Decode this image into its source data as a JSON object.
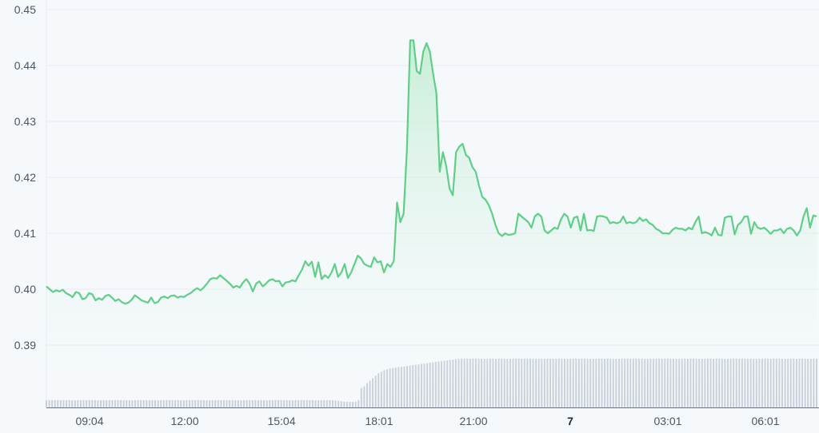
{
  "chart_data": {
    "type": "area",
    "title": "",
    "xlabel": "",
    "ylabel": "",
    "ylim": [
      0.38,
      0.45
    ],
    "grid": true,
    "legend": "none",
    "y_ticks": [
      "0.45",
      "0.44",
      "0.43",
      "0.42",
      "0.41",
      "0.40",
      "0.39"
    ],
    "x_ticks": [
      {
        "label": "09:04",
        "bold": false
      },
      {
        "label": "12:00",
        "bold": false
      },
      {
        "label": "15:04",
        "bold": false
      },
      {
        "label": "18:01",
        "bold": false
      },
      {
        "label": "21:00",
        "bold": false
      },
      {
        "label": "7",
        "bold": true
      },
      {
        "label": "03:01",
        "bold": false
      },
      {
        "label": "06:01",
        "bold": false
      }
    ],
    "colors": {
      "line": "#5fcf88",
      "area_top": "#bfeccf",
      "grid": "#e6ebf0",
      "volume": "#c9cfd8",
      "volume_axis": "#6b7280"
    },
    "series": [
      {
        "values": [
          0.4005,
          0.4,
          0.3995,
          0.3998,
          0.3996,
          0.3999,
          0.3993,
          0.399,
          0.3986,
          0.3995,
          0.3993,
          0.3982,
          0.3984,
          0.3993,
          0.3991,
          0.398,
          0.3984,
          0.3981,
          0.3988,
          0.399,
          0.3985,
          0.3979,
          0.3982,
          0.3977,
          0.3974,
          0.3976,
          0.3981,
          0.3989,
          0.3985,
          0.398,
          0.3978,
          0.3976,
          0.3985,
          0.3975,
          0.3977,
          0.3985,
          0.3987,
          0.3984,
          0.3988,
          0.3989,
          0.3985,
          0.3987,
          0.3986,
          0.399,
          0.3993,
          0.3998,
          0.4002,
          0.3998,
          0.4003,
          0.401,
          0.4018,
          0.402,
          0.4019,
          0.4025,
          0.402,
          0.4015,
          0.401,
          0.4003,
          0.4006,
          0.4003,
          0.4012,
          0.4018,
          0.401,
          0.3996,
          0.401,
          0.4014,
          0.4005,
          0.401,
          0.4016,
          0.4018,
          0.4014,
          0.4015,
          0.4005,
          0.4012,
          0.4013,
          0.4016,
          0.4014,
          0.4025,
          0.4035,
          0.405,
          0.4042,
          0.4049,
          0.4022,
          0.4048,
          0.4018,
          0.4025,
          0.402,
          0.403,
          0.4045,
          0.4022,
          0.403,
          0.4045,
          0.402,
          0.403,
          0.4045,
          0.406,
          0.4055,
          0.4045,
          0.4042,
          0.404,
          0.4057,
          0.4048,
          0.405,
          0.403,
          0.4045,
          0.404,
          0.405,
          0.4155,
          0.412,
          0.4135,
          0.425,
          0.4445,
          0.4445,
          0.439,
          0.4385,
          0.4425,
          0.444,
          0.4425,
          0.4385,
          0.435,
          0.421,
          0.4245,
          0.422,
          0.418,
          0.4168,
          0.4245,
          0.4255,
          0.426,
          0.424,
          0.4235,
          0.4218,
          0.421,
          0.4185,
          0.4165,
          0.416,
          0.415,
          0.4135,
          0.4115,
          0.41,
          0.4095,
          0.41,
          0.4097,
          0.4098,
          0.41,
          0.4135,
          0.413,
          0.4125,
          0.412,
          0.411,
          0.413,
          0.4135,
          0.413,
          0.4105,
          0.41,
          0.4105,
          0.411,
          0.4108,
          0.4125,
          0.4135,
          0.413,
          0.411,
          0.4128,
          0.413,
          0.4105,
          0.4135,
          0.4105,
          0.4106,
          0.4104,
          0.413,
          0.4131,
          0.413,
          0.4128,
          0.4118,
          0.412,
          0.4118,
          0.412,
          0.413,
          0.4118,
          0.412,
          0.4118,
          0.412,
          0.4128,
          0.4122,
          0.4125,
          0.4118,
          0.4115,
          0.4108,
          0.4105,
          0.41,
          0.41,
          0.4099,
          0.4106,
          0.411,
          0.4108,
          0.4108,
          0.4105,
          0.411,
          0.4107,
          0.412,
          0.413,
          0.41,
          0.4102,
          0.41,
          0.4096,
          0.411,
          0.4097,
          0.4096,
          0.4128,
          0.413,
          0.413,
          0.4098,
          0.4115,
          0.412,
          0.413,
          0.413,
          0.4099,
          0.412,
          0.411,
          0.4108,
          0.411,
          0.4105,
          0.4099,
          0.4105,
          0.4105,
          0.4108,
          0.41,
          0.4108,
          0.411,
          0.4105,
          0.4096,
          0.4105,
          0.413,
          0.4145,
          0.411,
          0.4132,
          0.413
        ]
      }
    ],
    "volume": [
      9,
      9,
      9,
      9,
      9,
      9,
      9,
      9,
      9,
      9,
      9,
      9,
      9,
      9,
      9,
      9,
      9,
      9,
      9,
      9,
      9,
      9,
      9,
      9,
      9,
      9,
      9,
      9,
      9,
      9,
      9,
      9,
      9,
      9,
      9,
      9,
      9,
      9,
      9,
      9,
      9,
      9,
      9,
      9,
      9,
      9,
      9,
      9,
      9,
      9,
      9,
      9,
      9,
      9,
      9,
      9,
      9,
      9,
      9,
      9,
      9,
      9,
      9,
      9,
      9,
      9,
      9,
      9,
      9,
      9,
      9,
      9,
      9,
      9,
      9,
      9,
      9,
      9,
      9,
      9,
      9,
      9,
      9,
      9,
      9,
      9,
      9,
      9,
      9,
      9,
      9,
      9,
      9,
      9,
      9,
      9,
      9,
      9,
      9,
      9,
      9,
      8.5,
      8,
      7.5,
      7,
      6.8,
      6.8,
      6.8,
      7,
      9,
      24,
      26,
      30,
      33,
      36,
      39,
      42,
      44,
      46,
      47,
      48,
      48.5,
      49,
      49.5,
      50,
      50.5,
      51,
      51.5,
      52,
      52.5,
      53,
      53.5,
      54,
      54.5,
      55,
      55.5,
      56,
      56.5,
      57,
      57.5,
      58,
      58.5,
      59,
      59.5,
      60,
      60,
      60,
      60,
      60,
      60,
      60,
      60,
      60,
      60,
      60,
      60,
      60,
      60,
      60,
      60,
      60,
      60,
      60,
      60,
      60,
      60,
      60,
      60,
      60,
      60,
      60,
      60,
      60,
      60,
      60,
      60,
      60,
      60,
      60,
      60,
      60,
      60,
      60,
      60,
      60,
      60,
      60,
      60,
      60,
      60,
      60,
      60,
      60,
      60,
      60,
      60,
      60,
      60,
      60,
      60,
      60,
      60,
      60,
      60,
      60,
      60,
      60,
      60,
      60,
      60,
      60,
      60,
      60,
      60,
      60,
      60,
      60,
      60,
      60,
      60,
      60,
      60,
      60,
      60,
      60,
      60,
      60,
      60,
      60,
      60,
      60,
      60,
      60,
      60,
      60,
      60,
      60,
      60,
      60,
      60,
      60,
      60,
      60,
      60,
      60,
      60,
      60,
      60,
      60,
      60,
      60,
      60,
      60,
      60,
      60,
      60,
      60,
      60,
      60,
      60,
      60,
      60,
      60,
      60,
      60,
      60,
      60,
      60,
      60,
      60
    ]
  }
}
